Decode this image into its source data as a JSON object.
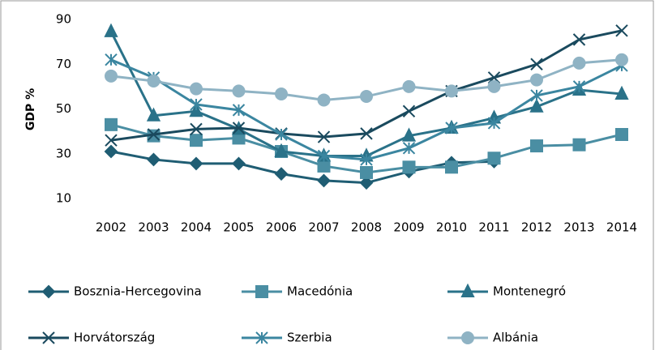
{
  "chart_data": {
    "type": "line",
    "ylabel": "GDP %",
    "categories": [
      "2002",
      "2003",
      "2004",
      "2005",
      "2006",
      "2007",
      "2008",
      "2009",
      "2010",
      "2011",
      "2012",
      "2013",
      "2014"
    ],
    "ylim": [
      10,
      90
    ],
    "yticks": [
      10,
      30,
      50,
      70,
      90
    ],
    "legend": "bottom",
    "series": [
      {
        "name": "Bosznia-Hercegovina",
        "color": "#1f5d73",
        "marker": "diamond",
        "values": [
          31,
          27.4,
          25.6,
          25.6,
          21,
          18,
          17,
          22,
          26,
          26.5,
          null,
          null,
          null
        ]
      },
      {
        "name": "Macedónia",
        "color": "#4a8ea3",
        "marker": "square",
        "values": [
          43,
          38,
          36,
          37,
          31,
          24.5,
          21.6,
          24,
          24,
          28,
          33.5,
          34,
          38.6
        ]
      },
      {
        "name": "Montenegró",
        "color": "#2a7289",
        "marker": "triangle",
        "values": [
          84.6,
          47,
          49,
          41,
          31,
          29,
          29,
          38,
          41.5,
          46,
          51,
          58.5,
          56.7
        ]
      },
      {
        "name": "Horvátország",
        "color": "#1a4a5e",
        "marker": "x",
        "values": [
          36,
          38.6,
          41,
          41.5,
          39,
          37.5,
          39,
          49,
          58,
          64,
          70,
          81,
          85
        ]
      },
      {
        "name": "Szerbia",
        "color": "#3b86a0",
        "marker": "star",
        "values": [
          72,
          64,
          52,
          49.5,
          38.6,
          29,
          27.4,
          32.5,
          41.5,
          43.7,
          56,
          60,
          69.4
        ]
      },
      {
        "name": "Albánia",
        "color": "#8fb3c4",
        "marker": "circle",
        "values": [
          64.7,
          62.5,
          59,
          58,
          56.7,
          54,
          55.6,
          60,
          58,
          60,
          63,
          70.5,
          72
        ]
      }
    ]
  }
}
